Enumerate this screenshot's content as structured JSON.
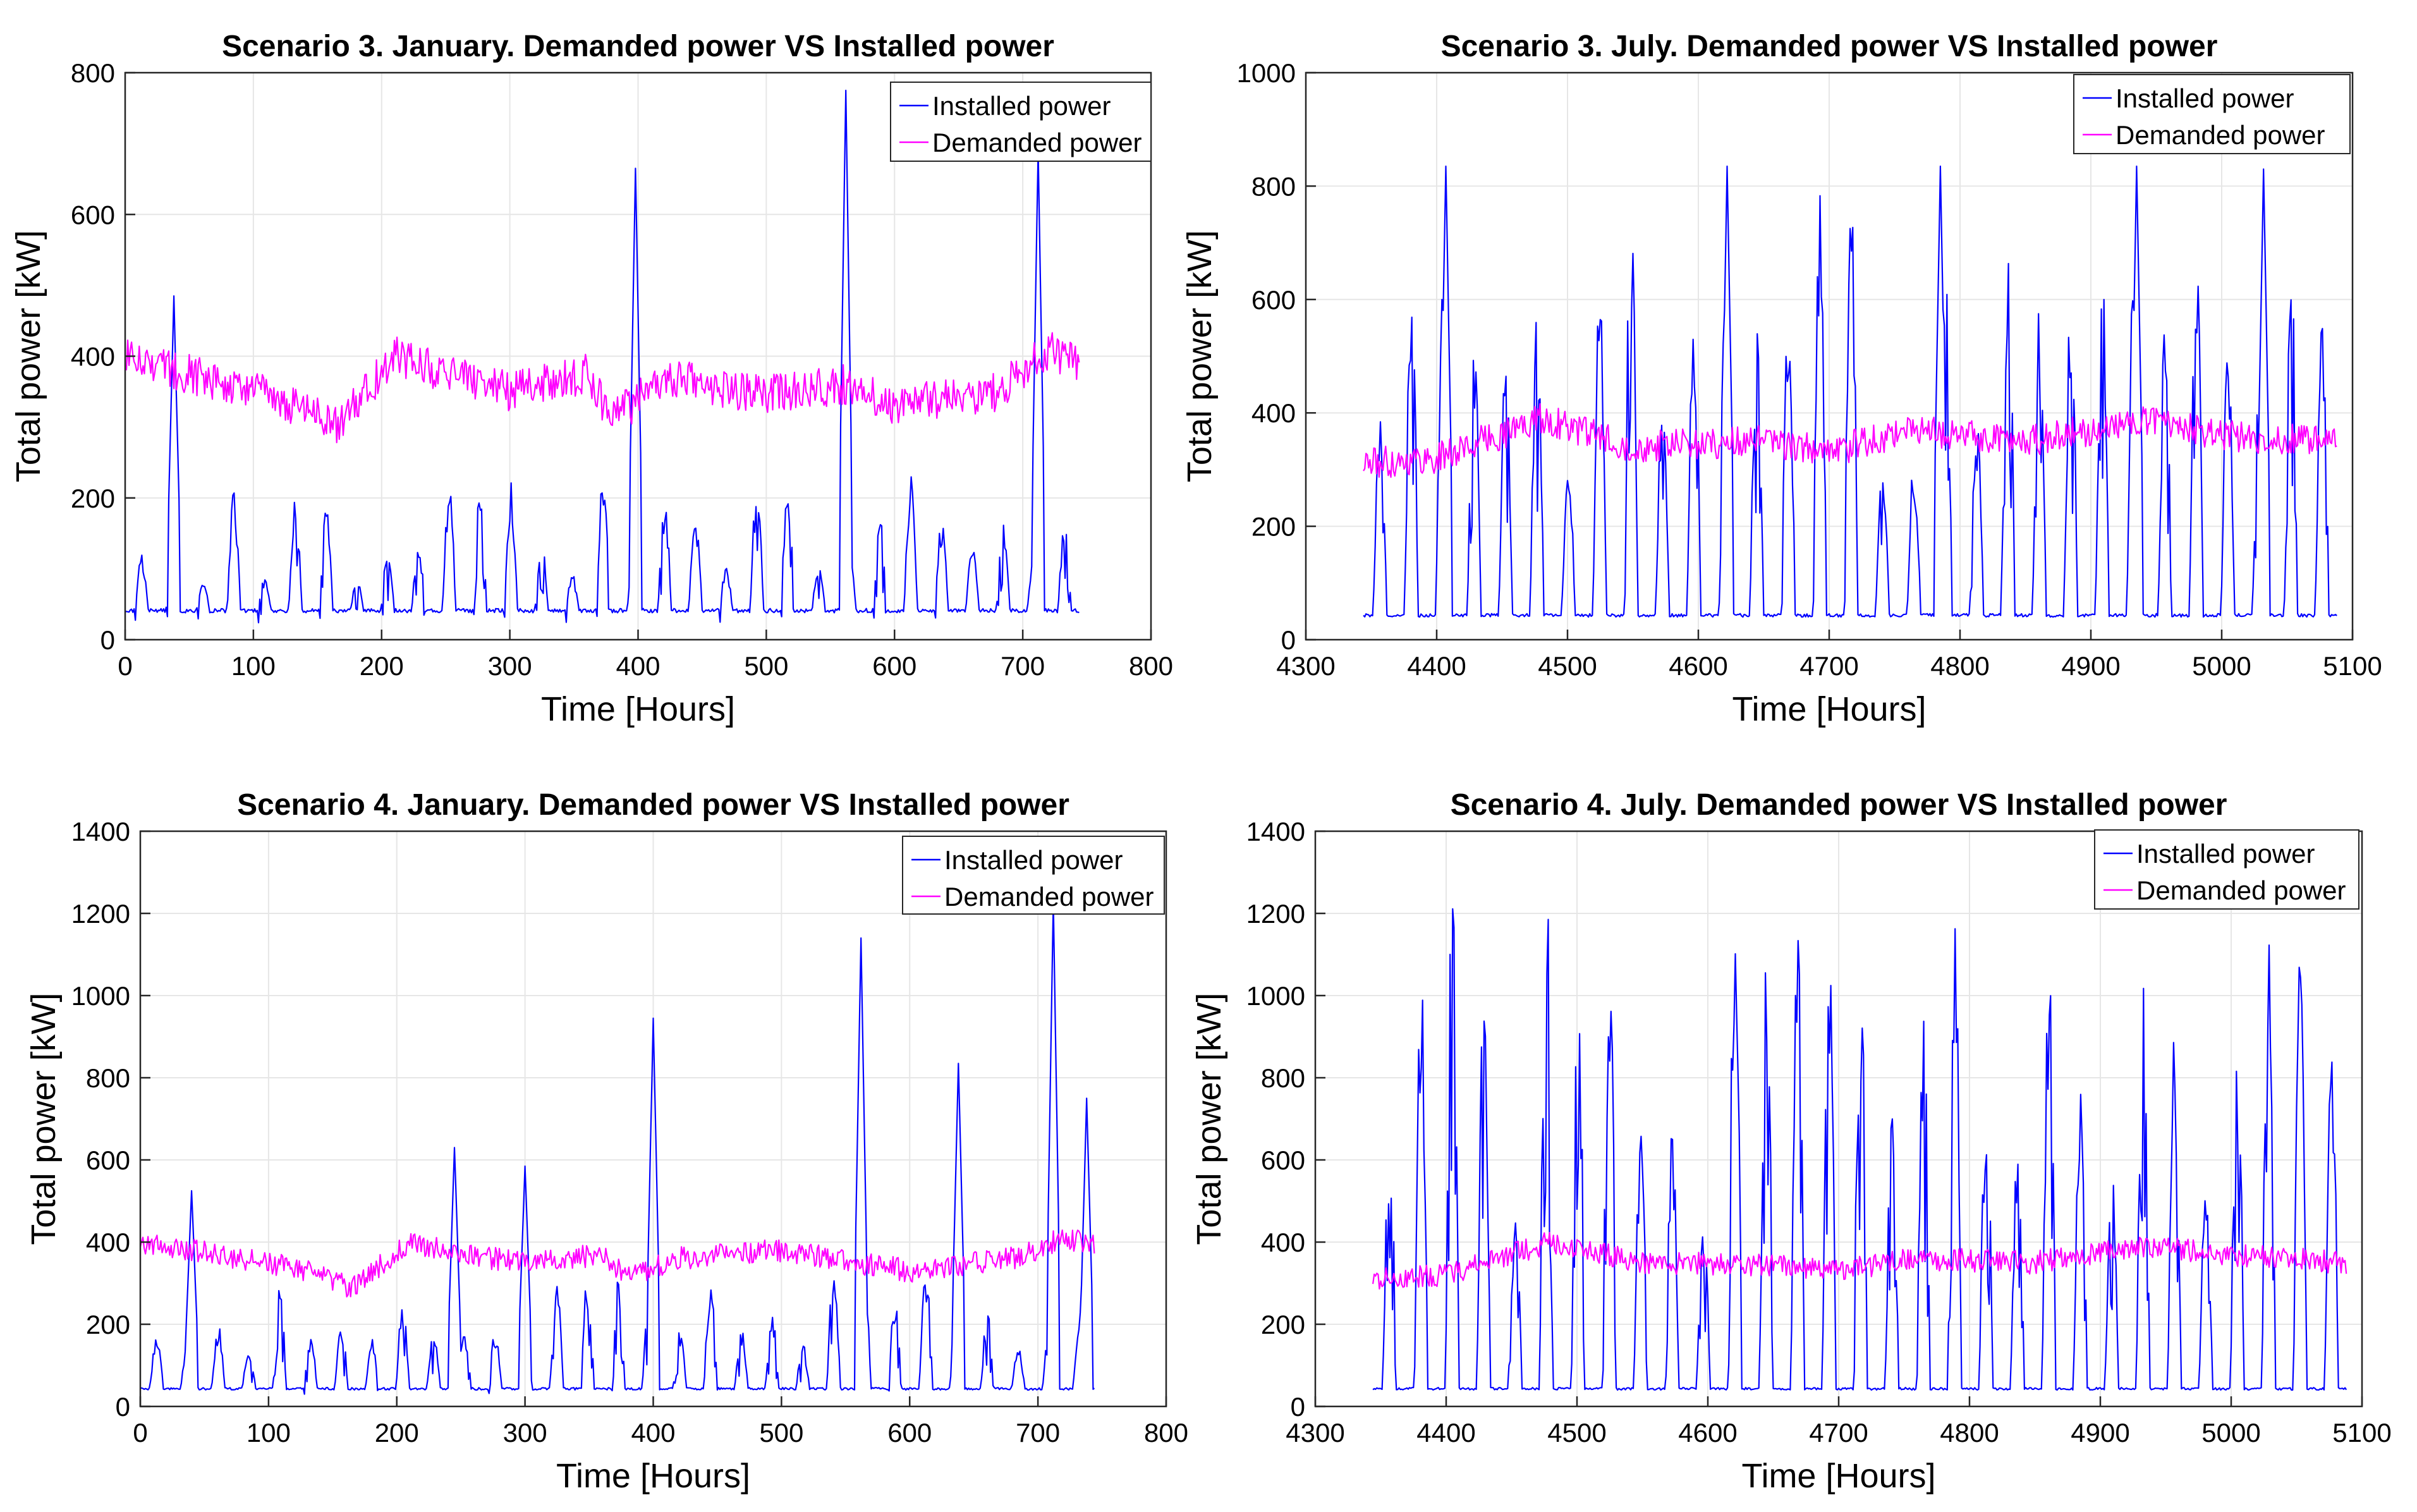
{
  "chart_data": [
    {
      "type": "line",
      "title": "Scenario 3. January. Demanded power VS Installed power",
      "xlabel": "Time [Hours]",
      "ylabel": "Total power [kW]",
      "xlim": [
        0,
        800
      ],
      "ylim": [
        0,
        800
      ],
      "xticks": [
        0,
        100,
        200,
        300,
        400,
        500,
        600,
        700,
        800
      ],
      "yticks": [
        0,
        200,
        400,
        600,
        800
      ],
      "grid": true,
      "legend": "top-right",
      "series": [
        {
          "name": "Installed power",
          "color": "#0000ff",
          "x_start": 0,
          "x_end": 744,
          "base": 38,
          "day_peak": 220,
          "extra_peaks": [
            [
              38,
              485
            ],
            [
              398,
              665
            ],
            [
              562,
              775
            ],
            [
              712,
              690
            ]
          ]
        },
        {
          "name": "Demanded power",
          "color": "#ff00ff",
          "x_start": 0,
          "x_end": 744,
          "profile": [
            [
              0,
              400
            ],
            [
              60,
              370
            ],
            [
              120,
              340
            ],
            [
              165,
              300
            ],
            [
              210,
              400
            ],
            [
              250,
              375
            ],
            [
              300,
              350
            ],
            [
              360,
              375
            ],
            [
              380,
              310
            ],
            [
              420,
              370
            ],
            [
              500,
              345
            ],
            [
              560,
              360
            ],
            [
              600,
              330
            ],
            [
              680,
              350
            ],
            [
              720,
              410
            ],
            [
              744,
              390
            ]
          ],
          "noise": 28
        }
      ]
    },
    {
      "type": "line",
      "title": "Scenario 3. July. Demanded power VS Installed power",
      "xlabel": "Time [Hours]",
      "ylabel": "Total power [kW]",
      "xlim": [
        4300,
        5100
      ],
      "ylim": [
        0,
        1000
      ],
      "xticks": [
        4300,
        4400,
        4500,
        4600,
        4700,
        4800,
        4900,
        5000,
        5100
      ],
      "yticks": [
        0,
        200,
        400,
        600,
        800,
        1000
      ],
      "grid": true,
      "legend": "top-right",
      "series": [
        {
          "name": "Installed power",
          "color": "#0000ff",
          "x_start": 4344,
          "x_end": 5088,
          "base": 40,
          "day_peak": 780,
          "extra_peaks": [
            [
              4407,
              835
            ],
            [
              4622,
              835
            ],
            [
              4785,
              835
            ],
            [
              4935,
              835
            ],
            [
              5032,
              830
            ]
          ]
        },
        {
          "name": "Demanded power",
          "color": "#ff00ff",
          "x_start": 4344,
          "x_end": 5088,
          "profile": [
            [
              4344,
              310
            ],
            [
              4400,
              320
            ],
            [
              4480,
              390
            ],
            [
              4550,
              340
            ],
            [
              4650,
              350
            ],
            [
              4700,
              330
            ],
            [
              4760,
              370
            ],
            [
              4850,
              350
            ],
            [
              4950,
              390
            ],
            [
              5000,
              360
            ],
            [
              5088,
              350
            ]
          ],
          "noise": 28
        }
      ]
    },
    {
      "type": "line",
      "title": "Scenario 4. January. Demanded power VS Installed power",
      "xlabel": "Time [Hours]",
      "ylabel": "Total power [kW]",
      "xlim": [
        0,
        800
      ],
      "ylim": [
        0,
        1400
      ],
      "xticks": [
        0,
        100,
        200,
        300,
        400,
        500,
        600,
        700,
        800
      ],
      "yticks": [
        0,
        200,
        400,
        600,
        800,
        1000,
        1200,
        1400
      ],
      "grid": true,
      "legend": "top-right",
      "series": [
        {
          "name": "Installed power",
          "color": "#0000ff",
          "x_start": 0,
          "x_end": 744,
          "base": 40,
          "day_peak": 330,
          "extra_peaks": [
            [
              40,
              525
            ],
            [
              245,
              630
            ],
            [
              300,
              585
            ],
            [
              400,
              945
            ],
            [
              562,
              1140
            ],
            [
              638,
              835
            ],
            [
              712,
              1230
            ],
            [
              738,
              750
            ]
          ]
        },
        {
          "name": "Demanded power",
          "color": "#ff00ff",
          "x_start": 0,
          "x_end": 744,
          "profile": [
            [
              0,
              400
            ],
            [
              60,
              370
            ],
            [
              120,
              340
            ],
            [
              165,
              290
            ],
            [
              210,
              400
            ],
            [
              250,
              370
            ],
            [
              300,
              350
            ],
            [
              360,
              370
            ],
            [
              380,
              310
            ],
            [
              420,
              360
            ],
            [
              500,
              380
            ],
            [
              560,
              350
            ],
            [
              600,
              330
            ],
            [
              680,
              360
            ],
            [
              720,
              410
            ],
            [
              744,
              390
            ]
          ],
          "noise": 28
        }
      ]
    },
    {
      "type": "line",
      "title": "Scenario 4. July. Demanded power VS Installed power",
      "xlabel": "Time [Hours]",
      "ylabel": "Total power [kW]",
      "xlim": [
        4300,
        5100
      ],
      "ylim": [
        0,
        1400
      ],
      "xticks": [
        4300,
        4400,
        4500,
        4600,
        4700,
        4800,
        4900,
        5000,
        5100
      ],
      "yticks": [
        0,
        200,
        400,
        600,
        800,
        1000,
        1200,
        1400
      ],
      "grid": true,
      "legend": "top-right",
      "series": [
        {
          "name": "Installed power",
          "color": "#0000ff",
          "x_start": 4344,
          "x_end": 5088,
          "base": 40,
          "day_peak": 1235,
          "cap": 1235,
          "extra_peaks": []
        },
        {
          "name": "Demanded power",
          "color": "#ff00ff",
          "x_start": 4344,
          "x_end": 5088,
          "profile": [
            [
              4344,
              310
            ],
            [
              4400,
              320
            ],
            [
              4480,
              400
            ],
            [
              4550,
              350
            ],
            [
              4650,
              345
            ],
            [
              4700,
              330
            ],
            [
              4760,
              360
            ],
            [
              4850,
              350
            ],
            [
              4930,
              390
            ],
            [
              5000,
              370
            ],
            [
              5088,
              350
            ]
          ],
          "noise": 28
        }
      ]
    }
  ]
}
